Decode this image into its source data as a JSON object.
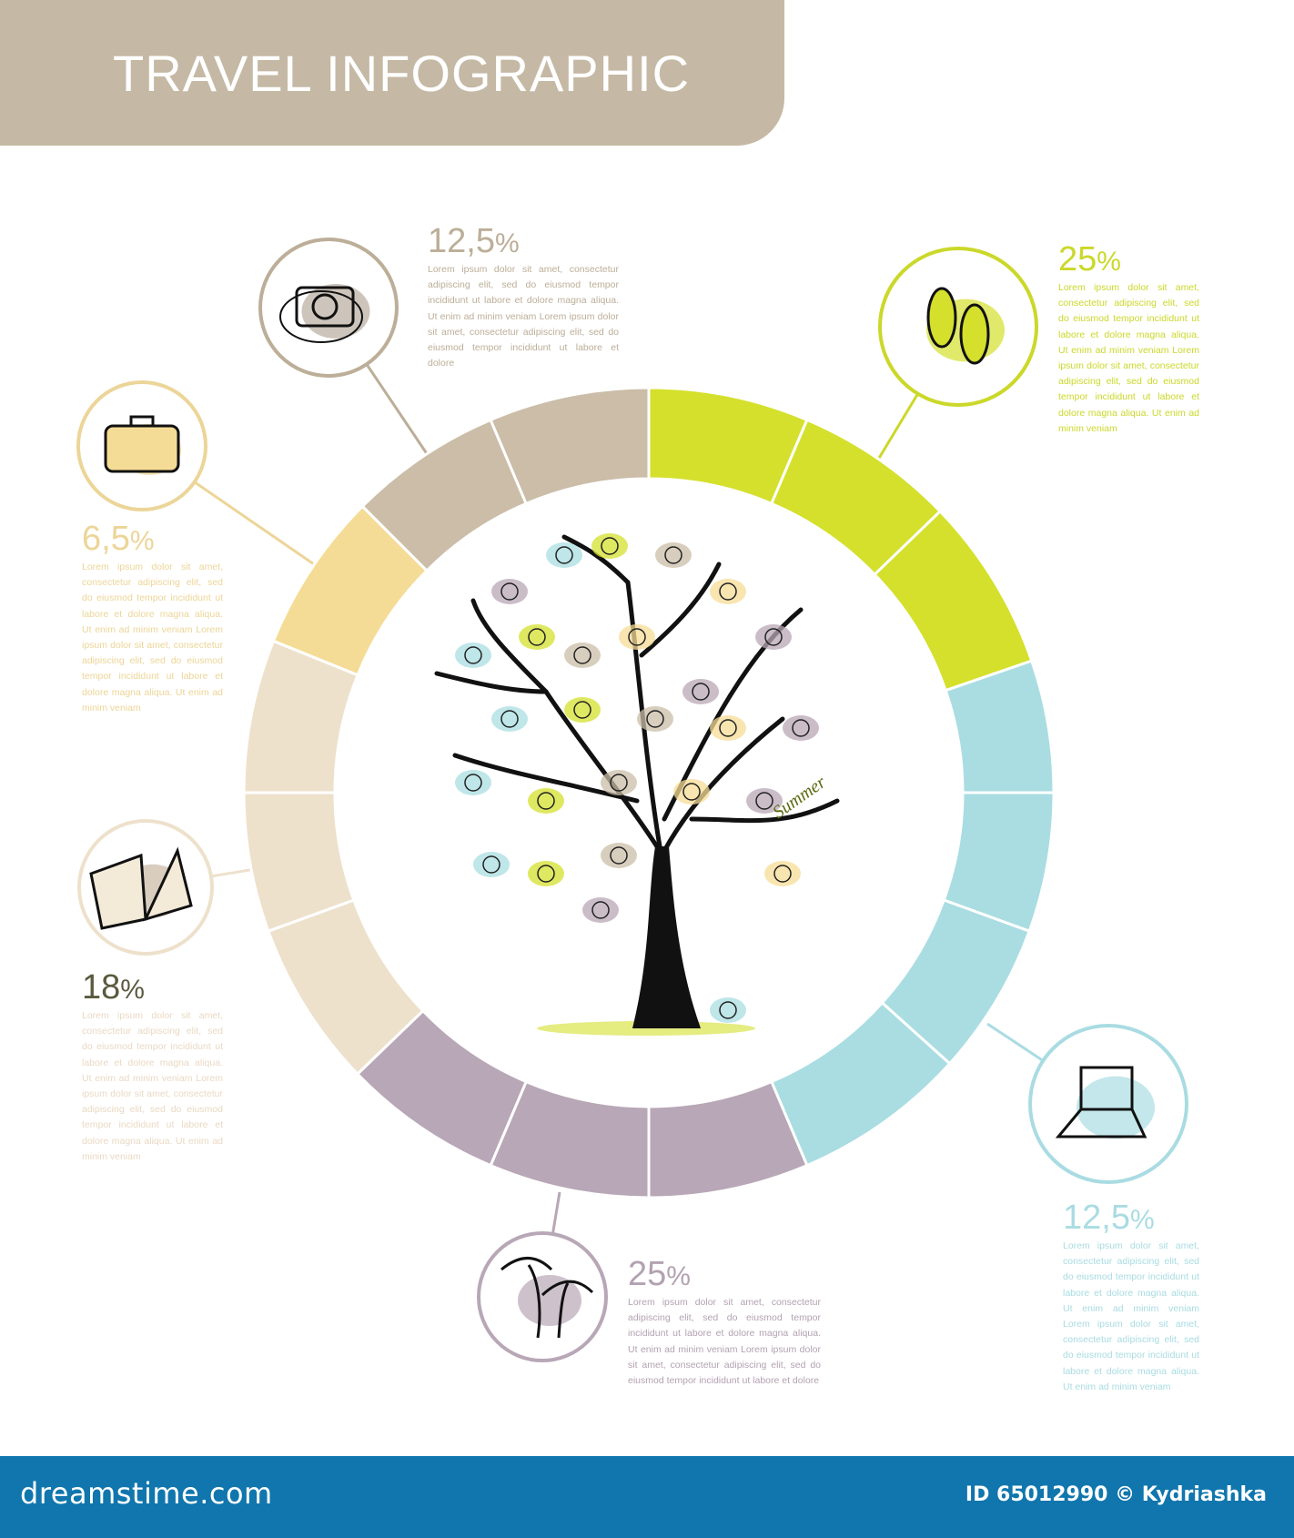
{
  "header": {
    "title": "TRAVEL  INFOGRAPHIC",
    "color": "#c5b9a5"
  },
  "ring": {
    "groups": [
      {
        "name": "green",
        "color": "#d4e02c"
      },
      {
        "name": "blue",
        "color": "#a9dde2"
      },
      {
        "name": "purple",
        "color": "#b8a7b6"
      },
      {
        "name": "light-beige",
        "color": "#eee1cc"
      },
      {
        "name": "yellow",
        "color": "#f5dc96"
      },
      {
        "name": "taupe",
        "color": "#cbbda8"
      }
    ]
  },
  "blocks": [
    {
      "id": "camera",
      "percent": "12,5",
      "color": "#bcae98",
      "text": "Lorem ipsum dolor sit amet, consectetur adipiscing elit, sed do eiusmod tempor incididunt ut labore et dolore magna aliqua. Ut enim ad minim veniam Lorem ipsum dolor sit amet, consectetur adipiscing elit, sed do eiusmod tempor incididunt ut labore et dolore"
    },
    {
      "id": "flip-flops",
      "percent": "25",
      "color": "#cbd82a",
      "text": "Lorem ipsum dolor sit amet, consectetur adipiscing elit, sed do eiusmod tempor incididunt ut labore et dolore magna aliqua. Ut enim ad minim veniam Lorem ipsum dolor sit amet, consectetur adipiscing elit, sed do eiusmod tempor incididunt ut labore et dolore magna aliqua. Ut enim ad minim veniam"
    },
    {
      "id": "suitcase",
      "percent": "6,5",
      "color": "#ecd598",
      "text": "Lorem ipsum dolor sit amet, consectetur adipiscing elit, sed do eiusmod tempor incididunt ut labore et dolore magna aliqua. Ut enim ad minim veniam Lorem ipsum dolor sit amet, consectetur adipiscing elit, sed do eiusmod tempor incididunt ut labore et dolore magna aliqua. Ut enim ad minim veniam"
    },
    {
      "id": "book",
      "percent": "18",
      "color": "#5b5a3e",
      "textColor": "#ead9c4",
      "text": "Lorem ipsum dolor sit amet, consectetur adipiscing elit, sed do eiusmod tempor incididunt ut labore et dolore magna aliqua. Ut enim ad minim veniam Lorem ipsum dolor sit amet, consectetur adipiscing elit, sed do eiusmod tempor incididunt ut labore et dolore magna aliqua. Ut enim ad minim veniam"
    },
    {
      "id": "laptop",
      "percent": "12,5",
      "color": "#a9dce2",
      "text": "Lorem ipsum dolor sit amet, consectetur adipiscing elit, sed do eiusmod tempor incididunt ut labore et dolore magna aliqua. Ut enim ad minim veniam Lorem ipsum dolor sit amet, consectetur adipiscing elit, sed do eiusmod tempor incididunt ut labore et dolore magna aliqua. Ut enim ad minim veniam"
    },
    {
      "id": "palm",
      "percent": "25",
      "color": "#b3a2b1",
      "text": "Lorem ipsum dolor sit amet, consectetur adipiscing elit, sed do eiusmod tempor incididunt ut labore et dolore magna aliqua. Ut enim ad minim veniam Lorem ipsum dolor sit amet, consectetur adipiscing elit, sed do eiusmod tempor incididunt ut labore et dolore"
    }
  ],
  "percent_symbol": "%",
  "icons": [
    "camera-icon",
    "flip-flops-icon",
    "suitcase-icon",
    "book-icon",
    "laptop-icon",
    "palm-tree-icon",
    "travel-tree-icon"
  ],
  "tree_label": "Summer",
  "footer": {
    "logo": "dreamstime.com",
    "credit": "ID 65012990 © Kydriashka",
    "color": "#1076ad"
  }
}
